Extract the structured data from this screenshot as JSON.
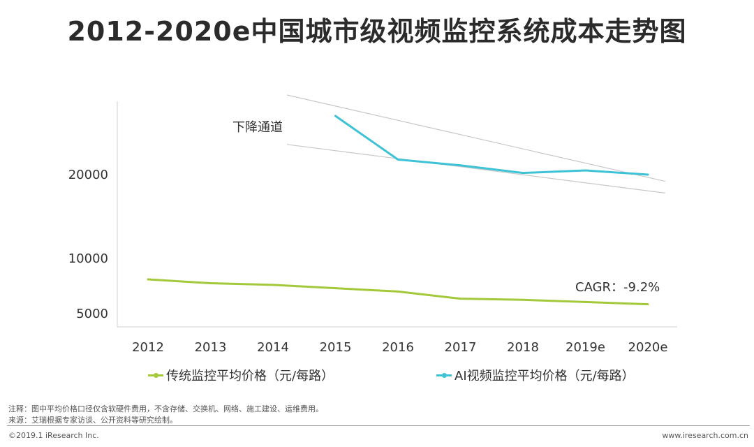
{
  "title": "2012-2020e中国城市级视频监控系统成本走势图",
  "chart_data": {
    "type": "line",
    "categories": [
      "2012",
      "2013",
      "2014",
      "2015",
      "2016",
      "2017",
      "2018",
      "2019e",
      "2020e"
    ],
    "series": [
      {
        "name": "传统监控平均价格（元/每路）",
        "color": "#a3c93a",
        "values": [
          8100,
          7750,
          7600,
          7300,
          7000,
          6350,
          6250,
          6050,
          5850
        ]
      },
      {
        "name": "AI视频监控平均价格（元/每路）",
        "color": "#3ec2d6",
        "values": [
          null,
          null,
          null,
          27000,
          21800,
          21100,
          20200,
          20500,
          20000
        ]
      }
    ],
    "yticks": [
      5000,
      10000,
      20000
    ],
    "ylabel": "",
    "xlabel": "",
    "annotations": {
      "channel_label": "下降通道",
      "cagr_label": "CAGR：-9.2%"
    },
    "trend_lines": [
      {
        "x": [
          "2014",
          "2020e+"
        ],
        "y": [
          29500,
          19200
        ]
      },
      {
        "x": [
          "2014",
          "2020e+"
        ],
        "y": [
          23600,
          17800
        ]
      }
    ]
  },
  "legend": {
    "traditional": "传统监控平均价格（元/每路）",
    "ai": "AI视频监控平均价格（元/每路）"
  },
  "notes": {
    "note": "注释：图中平均价格口径仅含软硬件费用，不含存储、交换机、网络、施工建设、运维费用。",
    "source": "来源：艾瑞根据专家访谈、公开资料等研究绘制。"
  },
  "footer": {
    "copyright": "©2019.1 iResearch Inc.",
    "website": "www.iresearch.com.cn"
  }
}
